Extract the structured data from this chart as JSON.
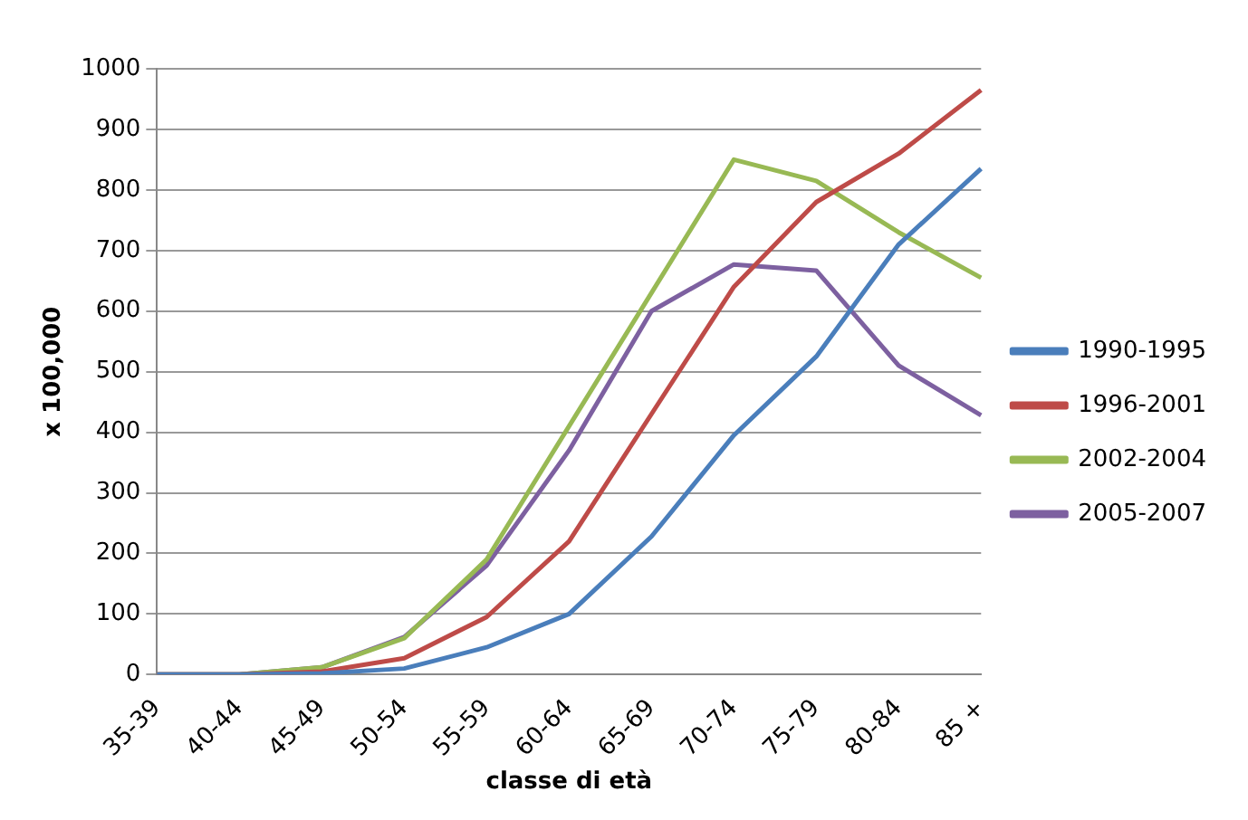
{
  "chart_data": {
    "type": "line",
    "xlabel": "classe di età",
    "ylabel": "x 100,000",
    "categories": [
      "35-39",
      "40-44",
      "45-49",
      "50-54",
      "55-59",
      "60-64",
      "65-69",
      "70-74",
      "75-79",
      "80-84",
      "85 +"
    ],
    "series": [
      {
        "name": "1990-1995",
        "color": "#4a7ebb",
        "values": [
          0,
          0,
          2,
          10,
          45,
          100,
          228,
          395,
          525,
          710,
          835
        ]
      },
      {
        "name": "1996-2001",
        "color": "#be4b48",
        "values": [
          0,
          0,
          5,
          27,
          95,
          220,
          430,
          640,
          780,
          860,
          965
        ]
      },
      {
        "name": "2002-2004",
        "color": "#98b954",
        "values": [
          0,
          0,
          12,
          60,
          190,
          410,
          630,
          850,
          815,
          730,
          655
        ]
      },
      {
        "name": "2005-2007",
        "color": "#7d60a0",
        "values": [
          0,
          0,
          12,
          62,
          180,
          370,
          600,
          677,
          667,
          510,
          428
        ]
      }
    ],
    "ylim": [
      0,
      1000
    ],
    "yticks": [
      0,
      100,
      200,
      300,
      400,
      500,
      600,
      700,
      800,
      900,
      1000
    ],
    "grid": "y",
    "legend": "right",
    "marker": "none",
    "line_style": "solid"
  }
}
